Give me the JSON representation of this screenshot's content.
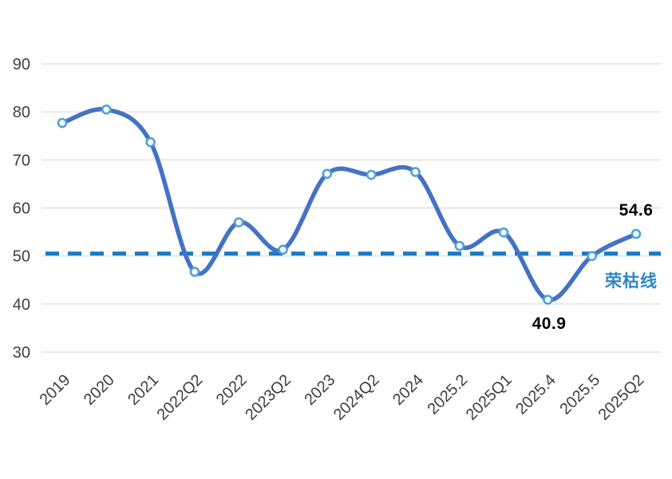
{
  "chart_data": {
    "type": "line",
    "title": "",
    "xlabel": "",
    "ylabel": "",
    "categories": [
      "2019",
      "2020",
      "2021",
      "2022Q2",
      "2022",
      "2023Q2",
      "2023",
      "2024Q2",
      "2024",
      "2025.2",
      "2025Q1",
      "2025.4",
      "2025.5",
      "2025Q2"
    ],
    "values": [
      77.7,
      80.5,
      73.7,
      46.7,
      57.0,
      51.3,
      67.1,
      66.9,
      67.5,
      52.1,
      54.9,
      40.9,
      50.0,
      54.6
    ],
    "y_ticks": [
      90,
      80,
      70,
      60,
      50,
      40,
      30
    ],
    "ylim": [
      30,
      90
    ],
    "grid": "horizontal",
    "legend": "none",
    "line_smooth": true,
    "marker": "open-circle",
    "threshold_line": {
      "value": 50.5,
      "style": "dashed",
      "label": "荣枯线"
    },
    "annotations": [
      {
        "category": "2025.4",
        "value": 40.9,
        "text": "40.9"
      },
      {
        "category": "2025Q2",
        "value": 54.6,
        "text": "54.6"
      }
    ],
    "colors": {
      "line": "#4472C4",
      "marker_fill": "#FFFFFF",
      "marker_stroke": "#4FA0DC",
      "threshold": "#1B7AC4",
      "threshold_label": "#2E86C5",
      "grid": "#D9D9D9",
      "tick_text": "#3F3F3F",
      "annotation": "#000000",
      "background": "#FFFFFF"
    }
  }
}
